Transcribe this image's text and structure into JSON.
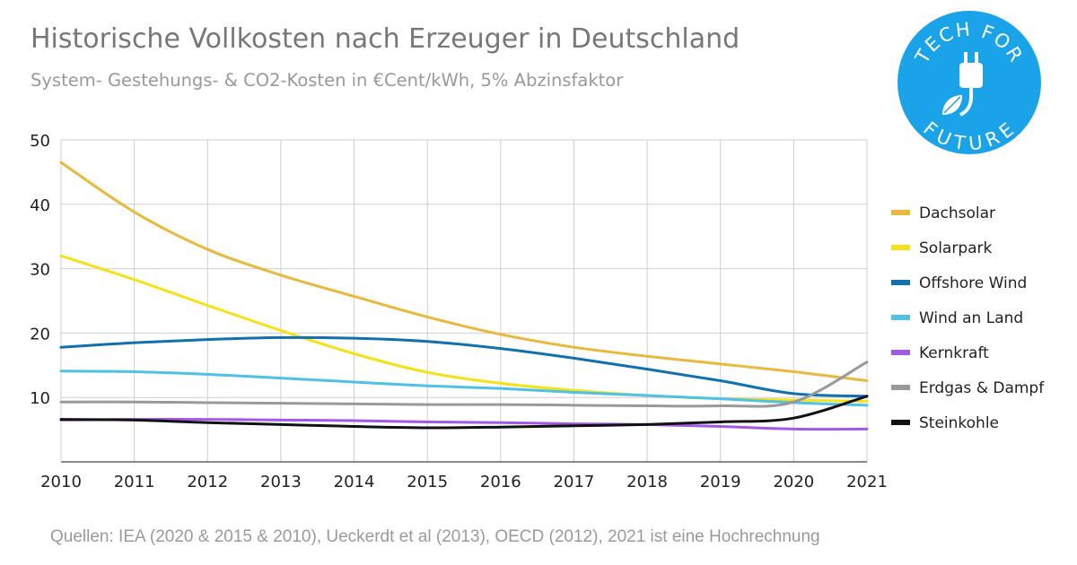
{
  "title": "Historische Vollkosten nach Erzeuger in Deutschland",
  "subtitle": "System- Gestehungs- & CO2-Kosten in €Cent/kWh, 5% Abzinsfaktor",
  "source": "Quellen: IEA (2020 & 2015 & 2010), Ueckerdt et al (2013), OECD (2012), 2021 ist eine Hochrechnung",
  "logo": {
    "text_top": "TECH FOR",
    "text_bottom": "FUTURE",
    "color": "#1aa3e8",
    "icon": "plug-leaf-icon"
  },
  "chart_data": {
    "type": "line",
    "x": [
      2010,
      2011,
      2012,
      2013,
      2014,
      2015,
      2016,
      2017,
      2018,
      2019,
      2020,
      2021
    ],
    "ylim": [
      0,
      50
    ],
    "yticks": [
      10,
      20,
      30,
      40,
      50
    ],
    "grid": true,
    "legend_position": "right",
    "series": [
      {
        "name": "Dachsolar",
        "color": "#e8b93a",
        "values": [
          46.5,
          38.8,
          33.0,
          29.0,
          25.7,
          22.5,
          19.8,
          17.8,
          16.4,
          15.2,
          14.0,
          12.6
        ]
      },
      {
        "name": "Solarpark",
        "color": "#f5e216",
        "values": [
          32.0,
          28.3,
          24.3,
          20.4,
          16.8,
          13.9,
          12.2,
          11.1,
          10.3,
          9.8,
          9.6,
          9.4
        ]
      },
      {
        "name": "Offshore Wind",
        "color": "#1170ae",
        "values": [
          17.8,
          18.5,
          19.0,
          19.3,
          19.2,
          18.7,
          17.6,
          16.1,
          14.4,
          12.6,
          10.6,
          10.2
        ]
      },
      {
        "name": "Wind an Land",
        "color": "#4ec1e6",
        "values": [
          14.1,
          14.0,
          13.6,
          13.0,
          12.4,
          11.8,
          11.4,
          10.8,
          10.3,
          9.8,
          9.2,
          8.8
        ]
      },
      {
        "name": "Kernkraft",
        "color": "#a259e6",
        "values": [
          6.5,
          6.6,
          6.6,
          6.5,
          6.4,
          6.2,
          6.1,
          5.9,
          5.8,
          5.5,
          5.1,
          5.1
        ]
      },
      {
        "name": "Erdgas & Dampf",
        "color": "#999999",
        "values": [
          9.3,
          9.3,
          9.2,
          9.1,
          9.0,
          8.9,
          8.9,
          8.8,
          8.7,
          8.7,
          9.3,
          15.5
        ]
      },
      {
        "name": "Steinkohle",
        "color": "#111111",
        "values": [
          6.6,
          6.5,
          6.1,
          5.8,
          5.5,
          5.3,
          5.4,
          5.6,
          5.8,
          6.2,
          6.8,
          10.2
        ]
      }
    ]
  }
}
